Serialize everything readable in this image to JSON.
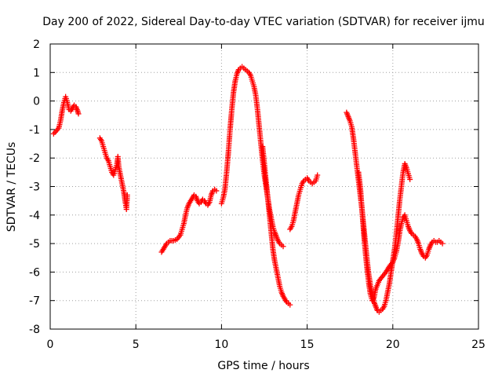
{
  "chart_data": {
    "type": "scatter",
    "title": "Day 200 of 2022, Sidereal Day-to-day VTEC variation (SDTVAR) for receiver ijmu",
    "xlabel": "GPS time / hours",
    "ylabel": "SDTVAR / TECUs",
    "xlim": [
      0,
      25
    ],
    "ylim": [
      -8,
      2
    ],
    "xticks": [
      0,
      5,
      10,
      15,
      20,
      25
    ],
    "yticks": [
      2,
      1,
      0,
      -1,
      -2,
      -3,
      -4,
      -5,
      -6,
      -7,
      -8
    ],
    "grid": true,
    "legend": "none",
    "series": [
      {
        "name": "SDTVAR",
        "color": "#ff0000",
        "marker": "plus",
        "segments": [
          [
            [
              0.2,
              -1.15
            ],
            [
              0.35,
              -1.05
            ],
            [
              0.5,
              -0.95
            ],
            [
              0.6,
              -0.7
            ],
            [
              0.7,
              -0.35
            ],
            [
              0.8,
              -0.05
            ],
            [
              0.9,
              0.15
            ],
            [
              1.0,
              -0.05
            ],
            [
              1.1,
              -0.3
            ],
            [
              1.2,
              -0.35
            ],
            [
              1.3,
              -0.25
            ],
            [
              1.4,
              -0.15
            ],
            [
              1.5,
              -0.2
            ],
            [
              1.6,
              -0.35
            ],
            [
              1.65,
              -0.45
            ]
          ],
          [
            [
              2.9,
              -1.3
            ],
            [
              3.0,
              -1.4
            ],
            [
              3.1,
              -1.6
            ],
            [
              3.2,
              -1.8
            ],
            [
              3.3,
              -2.0
            ],
            [
              3.4,
              -2.1
            ],
            [
              3.5,
              -2.3
            ],
            [
              3.6,
              -2.5
            ],
            [
              3.7,
              -2.6
            ],
            [
              3.8,
              -2.4
            ],
            [
              3.9,
              -2.2
            ],
            [
              3.95,
              -1.95
            ],
            [
              4.0,
              -2.3
            ],
            [
              4.1,
              -2.6
            ],
            [
              4.2,
              -2.9
            ],
            [
              4.3,
              -3.2
            ],
            [
              4.4,
              -3.6
            ],
            [
              4.45,
              -3.8
            ],
            [
              4.5,
              -3.3
            ]
          ],
          [
            [
              6.5,
              -5.3
            ],
            [
              6.6,
              -5.2
            ],
            [
              6.7,
              -5.1
            ],
            [
              6.8,
              -5.0
            ],
            [
              6.9,
              -4.95
            ],
            [
              7.0,
              -4.9
            ],
            [
              7.2,
              -4.9
            ],
            [
              7.4,
              -4.85
            ],
            [
              7.6,
              -4.7
            ],
            [
              7.7,
              -4.5
            ],
            [
              7.8,
              -4.3
            ],
            [
              7.9,
              -4.0
            ],
            [
              8.0,
              -3.75
            ],
            [
              8.1,
              -3.6
            ],
            [
              8.2,
              -3.5
            ],
            [
              8.3,
              -3.4
            ],
            [
              8.4,
              -3.3
            ],
            [
              8.5,
              -3.35
            ],
            [
              8.6,
              -3.5
            ],
            [
              8.7,
              -3.6
            ],
            [
              8.8,
              -3.55
            ],
            [
              8.9,
              -3.45
            ],
            [
              9.0,
              -3.5
            ],
            [
              9.1,
              -3.6
            ],
            [
              9.2,
              -3.65
            ],
            [
              9.3,
              -3.55
            ],
            [
              9.4,
              -3.3
            ],
            [
              9.5,
              -3.15
            ],
            [
              9.6,
              -3.1
            ],
            [
              9.7,
              -3.15
            ]
          ],
          [
            [
              10.0,
              -3.6
            ],
            [
              10.1,
              -3.4
            ],
            [
              10.2,
              -3.1
            ],
            [
              10.3,
              -2.5
            ],
            [
              10.4,
              -1.8
            ],
            [
              10.5,
              -1.0
            ],
            [
              10.6,
              -0.3
            ],
            [
              10.7,
              0.3
            ],
            [
              10.8,
              0.7
            ],
            [
              10.9,
              0.95
            ],
            [
              11.0,
              1.1
            ],
            [
              11.1,
              1.15
            ],
            [
              11.2,
              1.2
            ],
            [
              11.3,
              1.15
            ],
            [
              11.4,
              1.1
            ],
            [
              11.5,
              1.05
            ],
            [
              11.6,
              1.0
            ],
            [
              11.7,
              0.9
            ],
            [
              11.8,
              0.7
            ],
            [
              11.9,
              0.5
            ],
            [
              12.0,
              0.2
            ],
            [
              12.1,
              -0.3
            ],
            [
              12.2,
              -0.9
            ],
            [
              12.3,
              -1.5
            ],
            [
              12.4,
              -2.1
            ],
            [
              12.5,
              -2.6
            ],
            [
              12.6,
              -3.0
            ],
            [
              12.7,
              -3.4
            ],
            [
              12.8,
              -3.8
            ],
            [
              12.9,
              -4.1
            ],
            [
              13.0,
              -4.4
            ],
            [
              13.1,
              -4.6
            ],
            [
              13.2,
              -4.75
            ],
            [
              13.3,
              -4.9
            ],
            [
              13.4,
              -5.0
            ],
            [
              13.5,
              -5.05
            ],
            [
              13.6,
              -5.1
            ]
          ],
          [
            [
              12.4,
              -1.6
            ],
            [
              12.5,
              -2.2
            ],
            [
              12.6,
              -2.8
            ],
            [
              12.7,
              -3.4
            ],
            [
              12.8,
              -4.0
            ],
            [
              12.9,
              -4.6
            ],
            [
              13.0,
              -5.2
            ],
            [
              13.1,
              -5.6
            ],
            [
              13.2,
              -5.9
            ],
            [
              13.3,
              -6.2
            ],
            [
              13.4,
              -6.5
            ],
            [
              13.5,
              -6.7
            ],
            [
              13.6,
              -6.85
            ],
            [
              13.7,
              -6.95
            ],
            [
              13.8,
              -7.05
            ],
            [
              13.9,
              -7.1
            ],
            [
              14.0,
              -7.15
            ]
          ],
          [
            [
              14.0,
              -4.5
            ],
            [
              14.1,
              -4.4
            ],
            [
              14.2,
              -4.2
            ],
            [
              14.3,
              -3.9
            ],
            [
              14.4,
              -3.6
            ],
            [
              14.5,
              -3.3
            ],
            [
              14.6,
              -3.1
            ],
            [
              14.7,
              -2.9
            ],
            [
              14.8,
              -2.8
            ],
            [
              14.9,
              -2.75
            ],
            [
              15.0,
              -2.7
            ],
            [
              15.1,
              -2.8
            ],
            [
              15.2,
              -2.85
            ],
            [
              15.3,
              -2.9
            ],
            [
              15.4,
              -2.85
            ],
            [
              15.5,
              -2.8
            ],
            [
              15.6,
              -2.6
            ]
          ],
          [
            [
              17.3,
              -0.4
            ],
            [
              17.4,
              -0.55
            ],
            [
              17.5,
              -0.7
            ],
            [
              17.6,
              -0.9
            ],
            [
              17.7,
              -1.3
            ],
            [
              17.8,
              -1.8
            ],
            [
              17.9,
              -2.3
            ],
            [
              18.0,
              -2.8
            ],
            [
              18.1,
              -3.3
            ],
            [
              18.2,
              -3.8
            ],
            [
              18.3,
              -4.4
            ],
            [
              18.4,
              -5.0
            ],
            [
              18.5,
              -5.6
            ],
            [
              18.6,
              -6.1
            ],
            [
              18.7,
              -6.5
            ],
            [
              18.8,
              -6.8
            ],
            [
              18.9,
              -7.05
            ],
            [
              19.0,
              -7.2
            ],
            [
              19.1,
              -7.35
            ],
            [
              19.2,
              -7.4
            ],
            [
              19.3,
              -7.35
            ],
            [
              19.4,
              -7.3
            ],
            [
              19.5,
              -7.2
            ],
            [
              19.6,
              -7.0
            ],
            [
              19.7,
              -6.7
            ],
            [
              19.8,
              -6.4
            ],
            [
              19.9,
              -6.0
            ],
            [
              20.0,
              -5.6
            ],
            [
              20.1,
              -5.2
            ],
            [
              20.2,
              -4.7
            ],
            [
              20.3,
              -4.1
            ],
            [
              20.4,
              -3.5
            ],
            [
              20.5,
              -3.0
            ],
            [
              20.6,
              -2.5
            ],
            [
              20.7,
              -2.2
            ],
            [
              20.8,
              -2.35
            ],
            [
              20.9,
              -2.55
            ],
            [
              21.0,
              -2.75
            ]
          ],
          [
            [
              18.0,
              -2.5
            ],
            [
              18.1,
              -3.0
            ],
            [
              18.2,
              -3.8
            ],
            [
              18.3,
              -4.6
            ],
            [
              18.4,
              -5.3
            ],
            [
              18.5,
              -5.9
            ],
            [
              18.6,
              -6.4
            ],
            [
              18.7,
              -6.8
            ],
            [
              18.8,
              -7.0
            ],
            [
              18.9,
              -6.9
            ],
            [
              19.0,
              -6.6
            ],
            [
              19.2,
              -6.3
            ],
            [
              19.4,
              -6.15
            ],
            [
              19.6,
              -6.0
            ],
            [
              19.8,
              -5.8
            ],
            [
              20.0,
              -5.65
            ],
            [
              20.1,
              -5.5
            ],
            [
              20.2,
              -5.3
            ],
            [
              20.3,
              -5.0
            ],
            [
              20.4,
              -4.6
            ],
            [
              20.5,
              -4.3
            ],
            [
              20.6,
              -4.1
            ],
            [
              20.7,
              -4.0
            ],
            [
              20.8,
              -4.2
            ],
            [
              20.9,
              -4.4
            ],
            [
              21.0,
              -4.55
            ],
            [
              21.1,
              -4.65
            ],
            [
              21.2,
              -4.7
            ],
            [
              21.3,
              -4.75
            ],
            [
              21.4,
              -4.85
            ],
            [
              21.5,
              -5.0
            ],
            [
              21.6,
              -5.2
            ],
            [
              21.7,
              -5.35
            ],
            [
              21.8,
              -5.45
            ],
            [
              21.9,
              -5.5
            ],
            [
              22.0,
              -5.4
            ],
            [
              22.1,
              -5.2
            ],
            [
              22.2,
              -5.05
            ],
            [
              22.3,
              -4.95
            ],
            [
              22.4,
              -4.9
            ],
            [
              22.5,
              -4.95
            ],
            [
              22.6,
              -4.95
            ],
            [
              22.7,
              -4.9
            ],
            [
              22.8,
              -4.95
            ],
            [
              22.9,
              -5.0
            ]
          ]
        ]
      }
    ]
  }
}
